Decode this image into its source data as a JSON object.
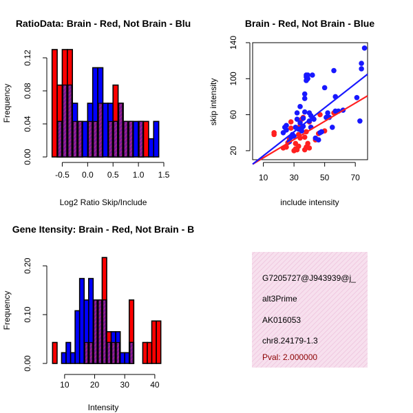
{
  "chart_data": [
    {
      "type": "bar",
      "id": "ratio-hist",
      "title": "RatioData: Brain - Red, Not Brain - Blu",
      "xlabel": "Log2 Ratio Skip/Include",
      "ylabel": "Frequency",
      "xlim": [
        -0.75,
        1.5
      ],
      "ylim": [
        0,
        0.13
      ],
      "xticks": [
        -0.5,
        0,
        0.5,
        1,
        1.5
      ],
      "xtick_labels": [
        "-0.5",
        "0.0",
        "0.5",
        "1.0",
        "1.5"
      ],
      "yticks": [
        0,
        0.04,
        0.08,
        0.12
      ],
      "ytick_labels": [
        "0.00",
        "0.04",
        "0.08",
        "0.12"
      ],
      "bin_width": 0.1,
      "bin_starts": [
        -0.7,
        -0.6,
        -0.5,
        -0.4,
        -0.3,
        -0.2,
        -0.1,
        0,
        0.1,
        0.2,
        0.3,
        0.4,
        0.5,
        0.6,
        0.7,
        0.8,
        0.9,
        1.0,
        1.1,
        1.2,
        1.3
      ],
      "series": [
        {
          "name": "Brain",
          "color": "#ff0000",
          "values": [
            0.13,
            0.087,
            0.13,
            0.13,
            0.043,
            0.043,
            0,
            0.043,
            0.043,
            0.065,
            0,
            0.043,
            0.087,
            0.065,
            0.043,
            0.043,
            0,
            0.043,
            0.043,
            0,
            0
          ]
        },
        {
          "name": "Not Brain",
          "color": "#0000ff",
          "values": [
            0,
            0.043,
            0.087,
            0.087,
            0.065,
            0.043,
            0.043,
            0.065,
            0.108,
            0.108,
            0.065,
            0.065,
            0.043,
            0.065,
            0.043,
            0.043,
            0.043,
            0.043,
            0,
            0.022,
            0.043
          ]
        }
      ]
    },
    {
      "type": "scatter",
      "id": "intensity-scatter",
      "title": "Brain - Red, Not Brain - Blue",
      "xlabel": "include intensity",
      "ylabel": "skip intensity",
      "xlim": [
        3,
        78
      ],
      "ylim": [
        10,
        140
      ],
      "xticks": [
        10,
        30,
        50,
        70
      ],
      "yticks": [
        20,
        60,
        100,
        140
      ],
      "series": [
        {
          "name": "Brain",
          "color": "#ff2020",
          "points": [
            [
              17,
              38
            ],
            [
              17,
              40
            ],
            [
              23,
              23
            ],
            [
              25,
              24
            ],
            [
              26,
              29
            ],
            [
              27,
              33
            ],
            [
              28,
              45
            ],
            [
              28,
              52
            ],
            [
              30,
              20
            ],
            [
              31,
              22
            ],
            [
              31,
              28
            ],
            [
              32,
              21
            ],
            [
              33,
              25
            ],
            [
              33,
              38
            ],
            [
              34,
              34
            ],
            [
              34,
              48
            ],
            [
              35,
              55
            ],
            [
              36,
              57
            ],
            [
              37,
              21
            ],
            [
              37,
              35
            ],
            [
              38,
              24
            ],
            [
              38,
              41
            ],
            [
              39,
              28
            ],
            [
              40,
              23
            ],
            [
              40,
              52
            ],
            [
              41,
              46
            ],
            [
              44,
              32
            ],
            [
              46,
              39
            ],
            [
              47,
              60
            ],
            [
              50,
              42
            ],
            [
              56,
              62
            ]
          ],
          "fit": [
            [
              3,
              5
            ],
            [
              78,
              81
            ]
          ]
        },
        {
          "name": "Not Brain",
          "color": "#1818ff",
          "points": [
            [
              23,
              40
            ],
            [
              24,
              46
            ],
            [
              25,
              43
            ],
            [
              25,
              48
            ],
            [
              27,
              30
            ],
            [
              28,
              35
            ],
            [
              29,
              38
            ],
            [
              30,
              36
            ],
            [
              31,
              46
            ],
            [
              32,
              55
            ],
            [
              32,
              62
            ],
            [
              33,
              44
            ],
            [
              34,
              51
            ],
            [
              34,
              69
            ],
            [
              35,
              42
            ],
            [
              35,
              45
            ],
            [
              36,
              47
            ],
            [
              36,
              56
            ],
            [
              37,
              63
            ],
            [
              37,
              78
            ],
            [
              37,
              83
            ],
            [
              38,
              98
            ],
            [
              38,
              102
            ],
            [
              38,
              104
            ],
            [
              39,
              104
            ],
            [
              39,
              100
            ],
            [
              40,
              62
            ],
            [
              40,
              53
            ],
            [
              41,
              46
            ],
            [
              41,
              59
            ],
            [
              42,
              104
            ],
            [
              43,
              55
            ],
            [
              44,
              34
            ],
            [
              46,
              32
            ],
            [
              47,
              40
            ],
            [
              48,
              41
            ],
            [
              50,
              90
            ],
            [
              51,
              57
            ],
            [
              52,
              62
            ],
            [
              53,
              57
            ],
            [
              55,
              46
            ],
            [
              56,
              109
            ],
            [
              57,
              80
            ],
            [
              57,
              64
            ],
            [
              59,
              64
            ],
            [
              62,
              65
            ],
            [
              71,
              79
            ],
            [
              73,
              53
            ],
            [
              74,
              111
            ],
            [
              74,
              117
            ],
            [
              76,
              134
            ]
          ],
          "fit": [
            [
              3,
              5
            ],
            [
              78,
              105
            ]
          ]
        }
      ]
    },
    {
      "type": "bar",
      "id": "intensity-hist",
      "title": "Gene Itensity: Brain - Red, Not Brain - B",
      "xlabel": "Intensity",
      "ylabel": "Frequency",
      "xlim": [
        5,
        43
      ],
      "ylim": [
        0,
        0.22
      ],
      "xticks": [
        10,
        20,
        30,
        40
      ],
      "xtick_labels": [
        "10",
        "20",
        "30",
        "40"
      ],
      "yticks": [
        0,
        0.1,
        0.2
      ],
      "ytick_labels": [
        "0.00",
        "0.10",
        "0.20"
      ],
      "bin_width": 1.5,
      "bin_starts": [
        6,
        7.5,
        9,
        10.5,
        12,
        13.5,
        15,
        16.5,
        18,
        19.5,
        21,
        22.5,
        24,
        25.5,
        27,
        28.5,
        30,
        31.5,
        33,
        34.5,
        36,
        37.5,
        39,
        40.5
      ],
      "series": [
        {
          "name": "Brain",
          "color": "#ff0000",
          "values": [
            0.043,
            0,
            0,
            0,
            0,
            0,
            0,
            0.043,
            0.043,
            0.13,
            0.13,
            0.217,
            0.065,
            0.043,
            0.043,
            0,
            0,
            0.13,
            0,
            0,
            0.043,
            0.043,
            0.087,
            0.087
          ]
        },
        {
          "name": "Not Brain",
          "color": "#0000ff",
          "values": [
            0,
            0,
            0.022,
            0.043,
            0.022,
            0.108,
            0.174,
            0.13,
            0.174,
            0.13,
            0.13,
            0.13,
            0.043,
            0.065,
            0.065,
            0.022,
            0.022,
            0.043,
            0,
            0,
            0,
            0,
            0,
            0
          ]
        }
      ]
    }
  ],
  "info_panel": {
    "lines": [
      "G7205727@J943939@j_",
      "alt3Prime",
      "AK016053",
      "chr8.24179-1.3"
    ],
    "pval": "Pval: 2.000000",
    "pval_color": "#8b0000",
    "background_color": "#f4d6e7"
  }
}
